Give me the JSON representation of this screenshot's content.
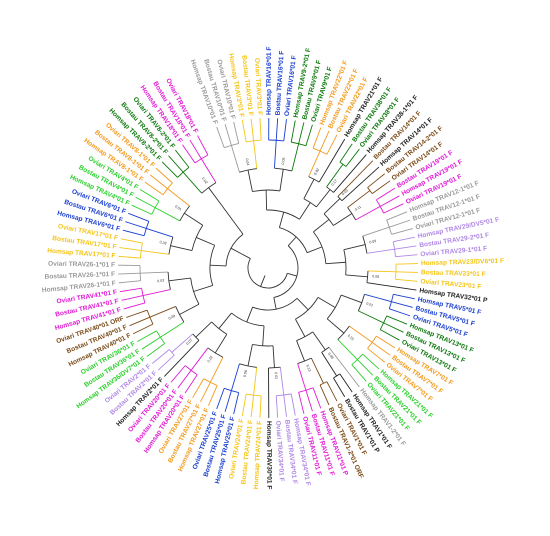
{
  "colors": {
    "default": "#333333",
    "Homsap": "#222222",
    "Bostau": "#7a4a16",
    "Oviari": "#0d7a0d",
    "orange": "#f39a1c",
    "yellow": "#f5c518",
    "magenta": "#e11bd4",
    "lilac": "#b088e6",
    "grey": "#9a9a9a",
    "blue": "#1a3fd0",
    "green": "#2bd02b",
    "brown": "#8a5a1e",
    "olive": "#a9a94a"
  },
  "leaves": [
    {
      "label": "Homsap TRAV10*01 F",
      "color": "grey"
    },
    {
      "label": "Bostau TRAV10*01 F",
      "color": "grey"
    },
    {
      "label": "Oviari TRAV10*01 F",
      "color": "grey"
    },
    {
      "label": "Homsap TRAV3*01 F",
      "color": "yellow"
    },
    {
      "label": "Bostau TRAV3*01 F",
      "color": "yellow"
    },
    {
      "label": "Oviari TRAV3*01 F",
      "color": "yellow"
    },
    {
      "label": "Homsap TRAV16*01 F",
      "color": "blue"
    },
    {
      "label": "Bostau TRAV16*01 F",
      "color": "blue"
    },
    {
      "label": "Oviari TRAV16*01 F",
      "color": "blue"
    },
    {
      "label": "Homsap TRAV9-2*01 F",
      "color": "Oviari"
    },
    {
      "label": "Bostau TRAV9*01 F",
      "color": "Oviari"
    },
    {
      "label": "Oviari TRAV9*01 F",
      "color": "Oviari"
    },
    {
      "label": "Homsap TRAV22*01 F",
      "color": "orange"
    },
    {
      "label": "Bostau TRAV22*01 F",
      "color": "orange"
    },
    {
      "label": "Oviari TRAV22*01 F",
      "color": "orange"
    },
    {
      "label": "Homsap TRAV21*01 F",
      "color": "Homsap"
    },
    {
      "label": "Bostau TRAV38*01 F",
      "color": "Oviari"
    },
    {
      "label": "Oviari TRAV38*01 F",
      "color": "Oviari"
    },
    {
      "label": "Homsap TRAV38-1*01 F",
      "color": "Homsap"
    },
    {
      "label": "Bostau TRAV14*01 F",
      "color": "Bostau"
    },
    {
      "label": "Homsap TRAV14*01 F",
      "color": "Homsap"
    },
    {
      "label": "Bostau TRAV14-2*01 F",
      "color": "Bostau"
    },
    {
      "label": "Oviari TRAV14*01 F",
      "color": "Bostau"
    },
    {
      "label": "Bostau TRAV19*01 F",
      "color": "magenta"
    },
    {
      "label": "Homsap TRAV19*01 F",
      "color": "magenta"
    },
    {
      "label": "Oviari TRAV19*01 F",
      "color": "magenta"
    },
    {
      "label": "Homsap TRAV12-1*01 F",
      "color": "grey"
    },
    {
      "label": "Bostau TRAV12-1*01 F",
      "color": "grey"
    },
    {
      "label": "Oviari TRAV12-1*01 F",
      "color": "grey"
    },
    {
      "label": "Homsap TRAV29/DV5*01 F",
      "color": "lilac"
    },
    {
      "label": "Bostau TRAV29-2*01 F",
      "color": "lilac"
    },
    {
      "label": "Oviari TRAV29-1*01 F",
      "color": "lilac"
    },
    {
      "label": "Homsap TRAV23/DV6*01 F",
      "color": "yellow"
    },
    {
      "label": "Bostau TRAV23*01 F",
      "color": "yellow"
    },
    {
      "label": "Oviari TRAV23*01 F",
      "color": "yellow"
    },
    {
      "label": "Homsap TRAV32*01 P",
      "color": "Homsap"
    },
    {
      "label": "Homsap TRAV5*01 F",
      "color": "blue"
    },
    {
      "label": "Bostau TRAV5*01 F",
      "color": "blue"
    },
    {
      "label": "Oviari TRAV5*01 F",
      "color": "blue"
    },
    {
      "label": "Homsap TRAV13*01 F",
      "color": "Oviari"
    },
    {
      "label": "Bostau TRAV13*01 F",
      "color": "Oviari"
    },
    {
      "label": "Oviari TRAV13*01 F",
      "color": "Oviari"
    },
    {
      "label": "Homsap TRAV7*01 F",
      "color": "orange"
    },
    {
      "label": "Bostau TRAV7*01 F",
      "color": "orange"
    },
    {
      "label": "Oviari TRAV7*01 F",
      "color": "orange"
    },
    {
      "label": "Homsap TRAV21*01 F",
      "color": "green"
    },
    {
      "label": "Bostau TRAV21*01 F",
      "color": "green"
    },
    {
      "label": "Oviari TRAV21*01 F",
      "color": "green"
    },
    {
      "label": "Homsap TRAV1-2*01 F",
      "color": "grey"
    },
    {
      "label": "Homsap TRAV1*01 F",
      "color": "Homsap"
    },
    {
      "label": "Bostau TRAV1*01 P",
      "color": "Homsap"
    },
    {
      "label": "Oviari TRAV1*01 F",
      "color": "Bostau"
    },
    {
      "label": "Bostau TRAV1-2*01 ORF",
      "color": "Bostau"
    },
    {
      "label": "Homsap TRAV11*01 P",
      "color": "magenta"
    },
    {
      "label": "Bostau TRAV11*01 F",
      "color": "magenta"
    },
    {
      "label": "Oviari TRAV11*01 F",
      "color": "magenta"
    },
    {
      "label": "Homsap TRAV34*01 F",
      "color": "lilac"
    },
    {
      "label": "Bostau TRAV34*01 F",
      "color": "lilac"
    },
    {
      "label": "Oviari TRAV34*01 F",
      "color": "lilac"
    },
    {
      "label": "Homsap TRAV30*01 F",
      "color": "Homsap"
    },
    {
      "label": "Homsap TRAV24*01 F",
      "color": "yellow"
    },
    {
      "label": "Bostau TRAV24*01 F",
      "color": "yellow"
    },
    {
      "label": "Oviari TRAV24*01 F",
      "color": "yellow"
    },
    {
      "label": "Homsap TRAV25*01 F",
      "color": "blue"
    },
    {
      "label": "Bostau TRAV25*01 F",
      "color": "blue"
    },
    {
      "label": "Oviari TRAV25*01 F",
      "color": "blue"
    },
    {
      "label": "Homsap TRAV27*01 F",
      "color": "orange"
    },
    {
      "label": "Bostau TRAV27*01 F",
      "color": "orange"
    },
    {
      "label": "Oviari TRAV27*01 F",
      "color": "orange"
    },
    {
      "label": "Homsap TRAV20*01 F",
      "color": "magenta"
    },
    {
      "label": "Bostau TRAV20*01 F",
      "color": "magenta"
    },
    {
      "label": "Oviari TRAV20*01 F",
      "color": "magenta"
    },
    {
      "label": "Homsap TRAV2*01 F",
      "color": "Homsap"
    },
    {
      "label": "Bostau TRAV2*01 F",
      "color": "lilac"
    },
    {
      "label": "Oviari TRAV2*01 F",
      "color": "lilac"
    },
    {
      "label": "Homsap TRAV36/DV7*01 F",
      "color": "green"
    },
    {
      "label": "Bostau TRAV36*01 F",
      "color": "green"
    },
    {
      "label": "Oviari TRAV36*01 F",
      "color": "green"
    },
    {
      "label": "Homsap TRAV40*01 F",
      "color": "Bostau"
    },
    {
      "label": "Bostau TRAV40*01 F",
      "color": "Bostau"
    },
    {
      "label": "Oviari TRAV40*01 ORF",
      "color": "Bostau"
    },
    {
      "label": "Homsap TRAV41*01 F",
      "color": "magenta"
    },
    {
      "label": "Bostau TRAV41*01 F",
      "color": "magenta"
    },
    {
      "label": "Oviari TRAV41*01 F",
      "color": "magenta"
    },
    {
      "label": "Homsap TRAV26-1*01 F",
      "color": "grey"
    },
    {
      "label": "Bostau TRAV26-1*01 F",
      "color": "grey"
    },
    {
      "label": "Oviari TRAV26-1*01 F",
      "color": "grey"
    },
    {
      "label": "Homsap TRAV17*01 F",
      "color": "yellow"
    },
    {
      "label": "Bostau TRAV17*01 F",
      "color": "yellow"
    },
    {
      "label": "Oviari TRAV17*01 F",
      "color": "yellow"
    },
    {
      "label": "Homsap TRAV6*01 F",
      "color": "blue"
    },
    {
      "label": "Bostau TRAV6*01 F",
      "color": "blue"
    },
    {
      "label": "Oviari TRAV6*01 F",
      "color": "blue"
    },
    {
      "label": "Homsap TRAV4*01 F",
      "color": "green"
    },
    {
      "label": "Bostau TRAV4*01 F",
      "color": "green"
    },
    {
      "label": "Oviari TRAV4*01 F",
      "color": "green"
    },
    {
      "label": "Homsap TRAV8-1*01 F",
      "color": "orange"
    },
    {
      "label": "Bostau TRAV8-1*01 F",
      "color": "orange"
    },
    {
      "label": "Oviari TRAV8-1*01 F",
      "color": "orange"
    },
    {
      "label": "Homsap TRAV8-2*01 F",
      "color": "Oviari"
    },
    {
      "label": "Bostau TRAV8-2*01 F",
      "color": "Oviari"
    },
    {
      "label": "Oviari TRAV8-2*01 F",
      "color": "Oviari"
    },
    {
      "label": "Homsap TRAV18*01 F",
      "color": "magenta"
    },
    {
      "label": "Bostau TRAV18*01 F",
      "color": "magenta"
    },
    {
      "label": "Oviari TRAV18*01 F",
      "color": "magenta"
    }
  ],
  "branch_labels": [
    "0.04",
    "0.05",
    "0.02",
    "0.17",
    "0.03",
    "0.11",
    "0.09",
    "0.06",
    "0.01",
    "0.23",
    "0.08",
    "0.13",
    "0.02",
    "0.06",
    "0.22",
    "0.07",
    "0.09",
    "0.03",
    "0.28",
    "0.01",
    "0.02",
    "0.14",
    "0.28",
    "0.06",
    "0.02",
    "0.23",
    "0.09",
    "0.01",
    "0.09",
    "0.03",
    "0.21",
    "0.01",
    "0.04",
    "0.15",
    "0.05",
    "0.2",
    "0.07",
    "0.05",
    "0.33",
    "0.11",
    "0.03",
    "0.19",
    "0.1",
    "0.02",
    "0.06",
    "0.08"
  ]
}
